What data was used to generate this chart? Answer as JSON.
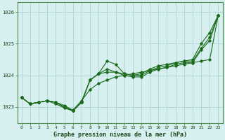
{
  "title": "Graphe pression niveau de la mer (hPa)",
  "bg_color": "#d7efef",
  "grid_color": "#b0d8d8",
  "line_color": "#1a6b1a",
  "spine_color": "#4a8a4a",
  "xlim": [
    -0.5,
    23.5
  ],
  "ylim": [
    1022.5,
    1026.3
  ],
  "yticks": [
    1023,
    1024,
    1025,
    1026
  ],
  "xticks": [
    0,
    1,
    2,
    3,
    4,
    5,
    6,
    7,
    8,
    9,
    10,
    11,
    12,
    13,
    14,
    15,
    16,
    17,
    18,
    19,
    20,
    21,
    22,
    23
  ],
  "series": [
    [
      1023.3,
      1023.1,
      1023.15,
      1023.2,
      1023.15,
      1023.05,
      1022.9,
      1023.2,
      1023.55,
      1023.75,
      1023.85,
      1023.95,
      1024.0,
      1024.05,
      1024.1,
      1024.15,
      1024.2,
      1024.25,
      1024.3,
      1024.35,
      1024.4,
      1024.45,
      1024.5,
      1025.9
    ],
    [
      1023.3,
      1023.1,
      1023.15,
      1023.2,
      1023.15,
      1023.0,
      1022.88,
      1023.15,
      1023.85,
      1024.05,
      1024.45,
      1024.35,
      1024.05,
      1024.0,
      1024.05,
      1024.2,
      1024.3,
      1024.35,
      1024.4,
      1024.45,
      1024.5,
      1025.0,
      1025.35,
      1025.9
    ],
    [
      1023.3,
      1023.1,
      1023.15,
      1023.2,
      1023.15,
      1023.0,
      1022.88,
      1023.15,
      1023.85,
      1024.05,
      1024.2,
      1024.1,
      1024.05,
      1024.0,
      1024.0,
      1024.15,
      1024.25,
      1024.3,
      1024.4,
      1024.45,
      1024.45,
      1024.85,
      1025.2,
      1025.9
    ],
    [
      1023.3,
      1023.1,
      1023.15,
      1023.2,
      1023.1,
      1022.97,
      1022.88,
      1023.15,
      1023.85,
      1024.05,
      1024.1,
      1024.1,
      1024.0,
      1023.95,
      1023.95,
      1024.1,
      1024.2,
      1024.25,
      1024.35,
      1024.4,
      1024.4,
      1024.8,
      1025.1,
      1025.9
    ]
  ]
}
